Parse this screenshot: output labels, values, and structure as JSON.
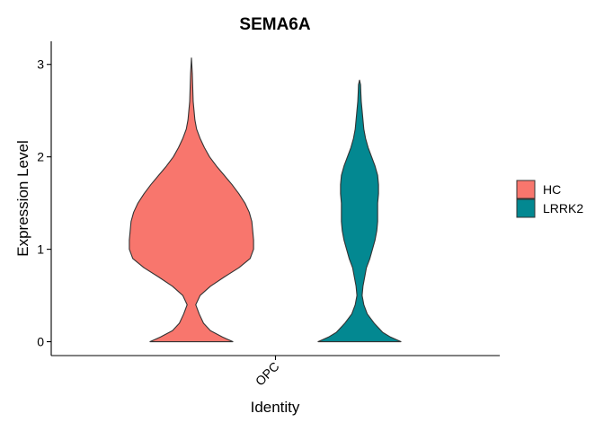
{
  "chart_data": {
    "type": "violin",
    "title": "SEMA6A",
    "xlabel": "Identity",
    "ylabel": "Expression Level",
    "categories": [
      "OPC"
    ],
    "ylim": [
      -0.15,
      3.25
    ],
    "yticks": [
      0,
      1,
      2,
      3
    ],
    "grid": false,
    "legend_position": "right",
    "series": [
      {
        "name": "HC",
        "color": "#F8766D",
        "max": 3.07,
        "density": [
          [
            0.0,
            0.48
          ],
          [
            0.05,
            0.36
          ],
          [
            0.12,
            0.22
          ],
          [
            0.2,
            0.14
          ],
          [
            0.3,
            0.09
          ],
          [
            0.4,
            0.05
          ],
          [
            0.5,
            0.1
          ],
          [
            0.6,
            0.22
          ],
          [
            0.7,
            0.38
          ],
          [
            0.8,
            0.55
          ],
          [
            0.9,
            0.68
          ],
          [
            1.0,
            0.72
          ],
          [
            1.1,
            0.72
          ],
          [
            1.2,
            0.71
          ],
          [
            1.3,
            0.7
          ],
          [
            1.4,
            0.67
          ],
          [
            1.5,
            0.62
          ],
          [
            1.6,
            0.55
          ],
          [
            1.7,
            0.47
          ],
          [
            1.8,
            0.38
          ],
          [
            1.9,
            0.29
          ],
          [
            2.0,
            0.21
          ],
          [
            2.1,
            0.15
          ],
          [
            2.2,
            0.1
          ],
          [
            2.3,
            0.06
          ],
          [
            2.4,
            0.04
          ],
          [
            2.5,
            0.03
          ],
          [
            2.6,
            0.02
          ],
          [
            2.75,
            0.015
          ],
          [
            2.9,
            0.01
          ],
          [
            3.07,
            0.0
          ]
        ]
      },
      {
        "name": "LRRK2",
        "color": "#038891",
        "max": 2.83,
        "density": [
          [
            0.0,
            0.48
          ],
          [
            0.05,
            0.36
          ],
          [
            0.1,
            0.27
          ],
          [
            0.2,
            0.17
          ],
          [
            0.3,
            0.09
          ],
          [
            0.4,
            0.05
          ],
          [
            0.5,
            0.03
          ],
          [
            0.6,
            0.04
          ],
          [
            0.7,
            0.06
          ],
          [
            0.8,
            0.08
          ],
          [
            0.9,
            0.12
          ],
          [
            1.0,
            0.15
          ],
          [
            1.1,
            0.18
          ],
          [
            1.2,
            0.2
          ],
          [
            1.3,
            0.21
          ],
          [
            1.4,
            0.21
          ],
          [
            1.5,
            0.21
          ],
          [
            1.6,
            0.22
          ],
          [
            1.7,
            0.22
          ],
          [
            1.8,
            0.21
          ],
          [
            1.9,
            0.18
          ],
          [
            2.0,
            0.14
          ],
          [
            2.1,
            0.1
          ],
          [
            2.2,
            0.07
          ],
          [
            2.3,
            0.05
          ],
          [
            2.4,
            0.04
          ],
          [
            2.5,
            0.03
          ],
          [
            2.6,
            0.02
          ],
          [
            2.7,
            0.015
          ],
          [
            2.78,
            0.012
          ],
          [
            2.83,
            0.0
          ]
        ]
      }
    ]
  }
}
